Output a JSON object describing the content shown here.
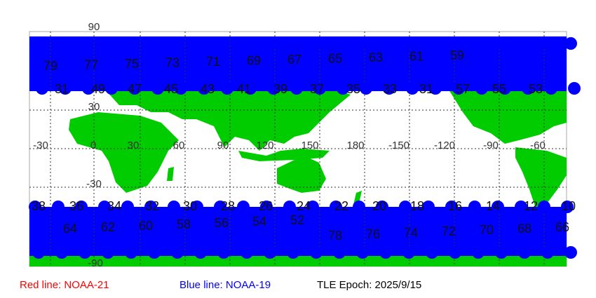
{
  "map": {
    "lat_labels": [
      "90",
      "30",
      "-30",
      "-90"
    ],
    "lon_labels": [
      "-30",
      "0",
      "30",
      "60",
      "90",
      "120",
      "150",
      "180",
      "-150",
      "-120",
      "-90",
      "-60"
    ],
    "top_track_labels_upper": [
      "79",
      "77",
      "75",
      "73",
      "71",
      "69",
      "67",
      "65",
      "63",
      "61",
      "59"
    ],
    "top_track_labels_lower": [
      "31",
      "49",
      "47",
      "45",
      "43",
      "41",
      "39",
      "37",
      "35",
      "33",
      "31",
      "57",
      "55",
      "53"
    ],
    "bottom_track_labels_upper": [
      "38",
      "36",
      "34",
      "32",
      "30",
      "28",
      "26",
      "24",
      "22",
      "20",
      "18",
      "16",
      "14",
      "12",
      "10"
    ],
    "bottom_track_labels_lower": [
      "64",
      "62",
      "60",
      "58",
      "56",
      "54",
      "52",
      "78",
      "76",
      "74",
      "72",
      "70",
      "68",
      "66"
    ],
    "colors": {
      "land": "#00cc00",
      "track_blue": "#0000ff",
      "track_red": "#ff0000",
      "grid": "#333333"
    }
  },
  "legend": {
    "red": "Red line: NOAA-21",
    "blue": "Blue line: NOAA-19",
    "epoch": "TLE Epoch: 2025/9/15"
  }
}
